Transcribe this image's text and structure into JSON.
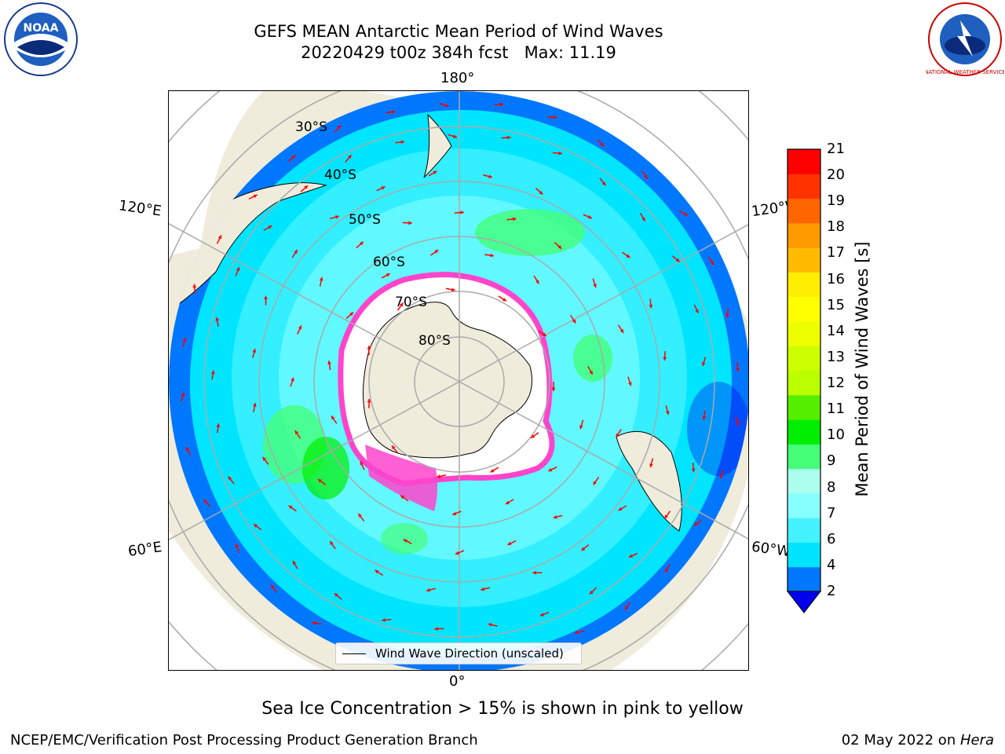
{
  "title": {
    "line1": "GEFS MEAN Antarctic Mean Period of Wind Waves",
    "run": "20220429 t00z 384h fcst",
    "max": "Max: 11.19"
  },
  "map": {
    "longitude_labels": {
      "top": "180°",
      "bottom": "0°",
      "upper_left": "120°E",
      "upper_right": "120°W",
      "lower_left": "60°E",
      "lower_right": "60°W"
    },
    "latitude_labels": [
      "30°S",
      "40°S",
      "50°S",
      "60°S",
      "70°S",
      "80°S"
    ],
    "legend": "Wind Wave Direction (unscaled)",
    "arrow_color": "#ff0000",
    "land_color": "#efecdc",
    "sea_ice_colors": [
      "#ff44cc",
      "#ffffff",
      "#ffd24a"
    ]
  },
  "colorbar": {
    "label": "Mean Period of Wind Waves [s]",
    "ticks": [
      "2",
      "4",
      "6",
      "7",
      "8",
      "9",
      "10",
      "11",
      "12",
      "13",
      "14",
      "15",
      "16",
      "17",
      "18",
      "19",
      "20",
      "21"
    ],
    "colors": [
      "#0077ff",
      "#00e5ff",
      "#44f2ff",
      "#88ffff",
      "#aaffee",
      "#44ff77",
      "#00ee00",
      "#55ee00",
      "#bbff00",
      "#ccff00",
      "#eeff00",
      "#ffff00",
      "#ffee00",
      "#ffbb00",
      "#ff9900",
      "#ff6600",
      "#ff3300",
      "#ff0000"
    ],
    "under_color": "#0000ee"
  },
  "footnote": "Sea Ice Concentration > 15% is shown in pink to yellow",
  "credit": "NCEP/EMC/Verification Post Processing Product Generation Branch",
  "date": {
    "text": "02 May 2022 on ",
    "machine": "Hera"
  },
  "logos": {
    "left": "NOAA",
    "right": "NATIONAL WEATHER SERVICE"
  }
}
